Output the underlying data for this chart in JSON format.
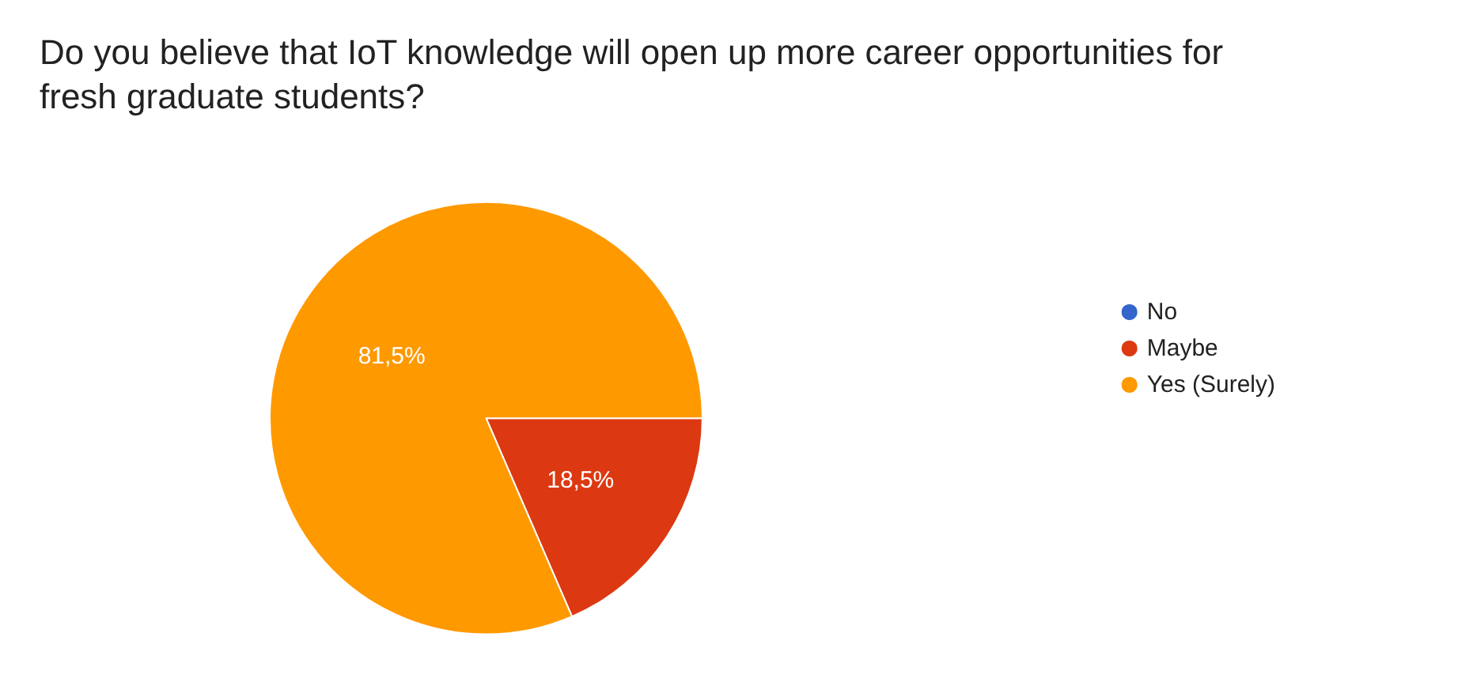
{
  "chart_data": {
    "type": "pie",
    "title": "Do you believe that IoT knowledge will open up more career opportunities for fresh graduate students?",
    "categories": [
      "No",
      "Maybe",
      "Yes (Surely)"
    ],
    "values": [
      0,
      18.5,
      81.5
    ],
    "colors": [
      "#3366cc",
      "#dc3912",
      "#ff9900"
    ],
    "value_labels": [
      null,
      "18,5%",
      "81,5%"
    ],
    "legend": "right"
  }
}
